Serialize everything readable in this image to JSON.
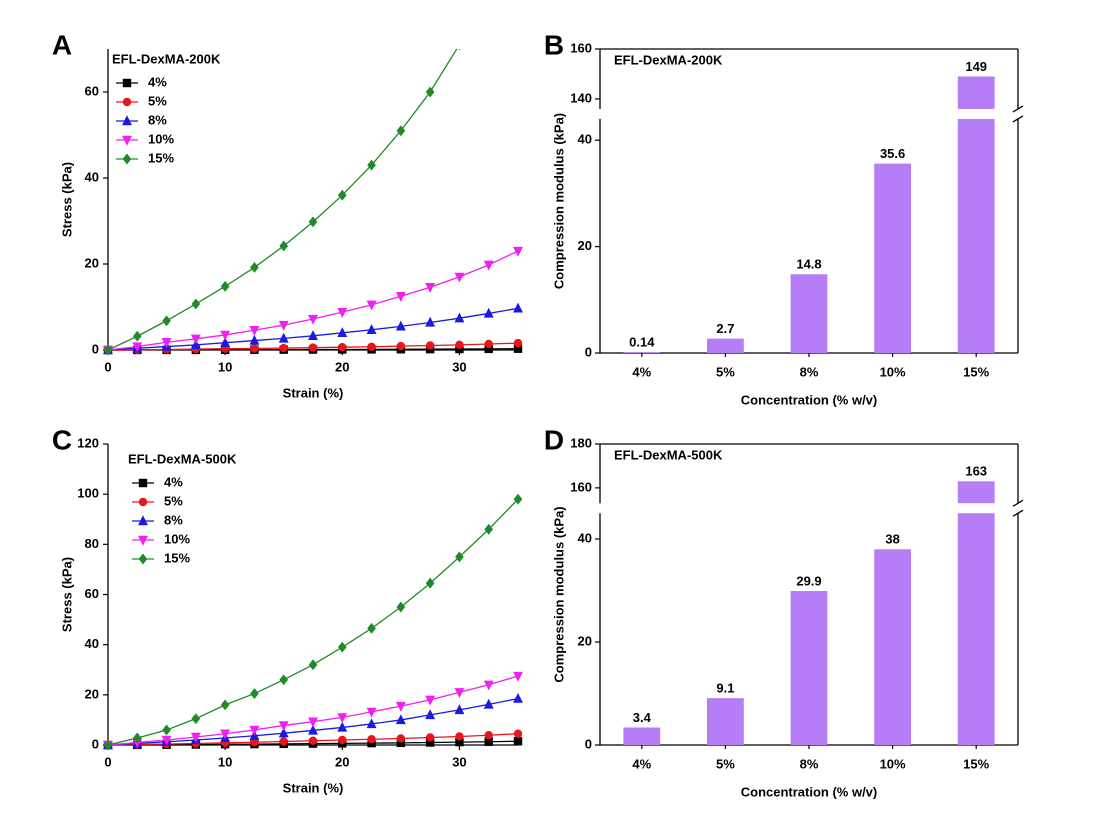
{
  "chart_data": [
    {
      "panel": "A",
      "type": "line",
      "title": "EFL-DexMA-200K",
      "x_label": "Strain (%)",
      "y_label": "Stress (kPa)",
      "x": [
        0,
        2.5,
        5,
        7.5,
        10,
        12.5,
        15,
        17.5,
        20,
        22.5,
        25,
        27.5,
        30,
        32.5,
        35
      ],
      "xlim": [
        0,
        35
      ],
      "xticks": [
        0,
        10,
        20,
        30
      ],
      "ylim": [
        0,
        70
      ],
      "yticks": [
        0,
        20,
        40,
        60
      ],
      "series": [
        {
          "name": "4%",
          "color": "#000000",
          "marker": "square",
          "values": [
            0,
            0.01,
            0.02,
            0.03,
            0.05,
            0.06,
            0.08,
            0.1,
            0.12,
            0.14,
            0.17,
            0.2,
            0.23,
            0.26,
            0.3
          ]
        },
        {
          "name": "5%",
          "color": "#e8161b",
          "marker": "circle",
          "values": [
            0,
            0.05,
            0.1,
            0.2,
            0.3,
            0.35,
            0.45,
            0.55,
            0.65,
            0.75,
            0.9,
            1.05,
            1.2,
            1.4,
            1.6
          ]
        },
        {
          "name": "8%",
          "color": "#1a1ae0",
          "marker": "triangle-up",
          "values": [
            0,
            0.4,
            0.8,
            1.2,
            1.7,
            2.2,
            2.7,
            3.3,
            4,
            4.7,
            5.5,
            6.4,
            7.4,
            8.5,
            9.7
          ]
        },
        {
          "name": "10%",
          "color": "#f020f0",
          "marker": "triangle-down",
          "values": [
            0,
            0.8,
            1.8,
            2.6,
            3.5,
            4.6,
            5.8,
            7.2,
            8.8,
            10.5,
            12.5,
            14.6,
            17,
            19.8,
            23
          ]
        },
        {
          "name": "15%",
          "color": "#1f8a28",
          "marker": "diamond",
          "values": [
            0,
            3.2,
            6.8,
            10.7,
            14.8,
            19.2,
            24.2,
            29.8,
            36,
            43,
            51,
            60,
            71,
            null,
            null
          ]
        }
      ]
    },
    {
      "panel": "B",
      "type": "bar",
      "title": "EFL-DexMA-200K",
      "x_label": "Concentration (% w/v)",
      "y_label": "Compression modulus (kPa)",
      "categories": [
        "4%",
        "5%",
        "8%",
        "10%",
        "15%"
      ],
      "values": [
        0.14,
        2.7,
        14.8,
        35.6,
        149
      ],
      "color": "#b57ef6",
      "ylim": [
        0,
        160
      ],
      "ybreak": [
        44,
        136
      ],
      "yticks": [
        0,
        20,
        40,
        140,
        160
      ]
    },
    {
      "panel": "C",
      "type": "line",
      "title": "EFL-DexMA-500K",
      "x_label": "Strain (%)",
      "y_label": "Stress (kPa)",
      "x": [
        0,
        2.5,
        5,
        7.5,
        10,
        12.5,
        15,
        17.5,
        20,
        22.5,
        25,
        27.5,
        30,
        32.5,
        35
      ],
      "xlim": [
        0,
        35
      ],
      "xticks": [
        0,
        10,
        20,
        30
      ],
      "ylim": [
        0,
        120
      ],
      "yticks": [
        0,
        20,
        40,
        60,
        80,
        100,
        120
      ],
      "series": [
        {
          "name": "4%",
          "color": "#000000",
          "marker": "square",
          "values": [
            0,
            0.05,
            0.1,
            0.2,
            0.3,
            0.35,
            0.45,
            0.55,
            0.65,
            0.75,
            0.85,
            1,
            1.15,
            1.3,
            1.5
          ]
        },
        {
          "name": "5%",
          "color": "#e8161b",
          "marker": "circle",
          "values": [
            0,
            0.2,
            0.4,
            0.6,
            0.9,
            1.1,
            1.4,
            1.7,
            2,
            2.3,
            2.6,
            3,
            3.4,
            3.9,
            4.5
          ]
        },
        {
          "name": "8%",
          "color": "#1a1ae0",
          "marker": "triangle-up",
          "values": [
            0,
            0.6,
            1.3,
            2,
            2.8,
            3.7,
            4.7,
            5.8,
            7,
            8.4,
            10,
            12,
            14,
            16.2,
            18.5
          ]
        },
        {
          "name": "10%",
          "color": "#f020f0",
          "marker": "triangle-down",
          "values": [
            0,
            1,
            2,
            3.2,
            4.5,
            6,
            7.8,
            9.3,
            11,
            13.2,
            15.5,
            18,
            21,
            24,
            27.5
          ]
        },
        {
          "name": "15%",
          "color": "#1f8a28",
          "marker": "diamond",
          "values": [
            0,
            2.8,
            6,
            10.5,
            16,
            20.5,
            26,
            32,
            39,
            46.5,
            55,
            64.5,
            75,
            86,
            98
          ]
        }
      ]
    },
    {
      "panel": "D",
      "type": "bar",
      "title": "EFL-DexMA-500K",
      "x_label": "Concentration (% w/v)",
      "y_label": "Compression modulus (kPa)",
      "categories": [
        "4%",
        "5%",
        "8%",
        "10%",
        "15%"
      ],
      "values": [
        3.4,
        9.1,
        29.9,
        38,
        163
      ],
      "color": "#b57ef6",
      "ylim": [
        0,
        180
      ],
      "ybreak": [
        45,
        153
      ],
      "yticks": [
        0,
        20,
        40,
        160,
        180
      ]
    }
  ]
}
